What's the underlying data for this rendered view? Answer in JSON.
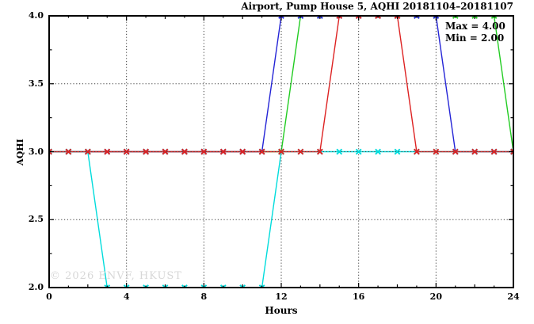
{
  "watermark": "© 2026 ENVF, HKUST",
  "chart_data": {
    "type": "line",
    "title": "Airport, Pump House 5, AQHI 20181104–20181107",
    "xlabel": "Hours",
    "ylabel": "AQHI",
    "xlim": [
      0,
      24
    ],
    "ylim": [
      2.0,
      4.0
    ],
    "grid": true,
    "x_major_ticks": [
      0,
      4,
      8,
      12,
      16,
      20,
      24
    ],
    "x_tick_labels": [
      "0",
      "4",
      "8",
      "12",
      "16",
      "20",
      "24"
    ],
    "y_major_ticks": [
      2.0,
      2.5,
      3.0,
      3.5,
      4.0
    ],
    "y_tick_labels": [
      "2.0",
      "2.5",
      "3.0",
      "3.5",
      "4.0"
    ],
    "y_minor_ticks": [
      2.25,
      2.75,
      3.25,
      3.75
    ],
    "grid_x": [
      4,
      8,
      12,
      16,
      20
    ],
    "grid_y": [
      2.5,
      3.0,
      3.5
    ],
    "annotations": [
      "Max = 4.00",
      "Min = 2.00"
    ],
    "x": [
      0,
      1,
      2,
      3,
      4,
      5,
      6,
      7,
      8,
      9,
      10,
      11,
      12,
      13,
      14,
      15,
      16,
      17,
      18,
      19,
      20,
      21,
      22,
      23,
      24
    ],
    "series": [
      {
        "name": "series-green",
        "color": "#22cc22",
        "values": [
          3,
          3,
          3,
          3,
          3,
          3,
          3,
          3,
          3,
          3,
          3,
          3,
          3,
          4,
          4,
          4,
          4,
          4,
          4,
          4,
          4,
          4,
          4,
          4,
          3
        ]
      },
      {
        "name": "series-blue",
        "color": "#2424d6",
        "values": [
          3,
          3,
          3,
          3,
          3,
          3,
          3,
          3,
          3,
          3,
          3,
          3,
          4,
          4,
          4,
          4,
          4,
          4,
          4,
          4,
          4,
          3,
          3,
          3,
          3
        ]
      },
      {
        "name": "series-cyan",
        "color": "#00dcdc",
        "values": [
          3,
          3,
          3,
          2,
          2,
          2,
          2,
          2,
          2,
          2,
          2,
          2,
          3,
          3,
          3,
          3,
          3,
          3,
          3,
          3,
          3,
          3,
          3,
          3,
          3
        ]
      },
      {
        "name": "series-red",
        "color": "#dd2222",
        "values": [
          3,
          3,
          3,
          3,
          3,
          3,
          3,
          3,
          3,
          3,
          3,
          3,
          3,
          3,
          3,
          4,
          4,
          4,
          4,
          3,
          3,
          3,
          3,
          3,
          3
        ]
      }
    ],
    "marker": "x",
    "legend_position": "top-right-inside"
  }
}
